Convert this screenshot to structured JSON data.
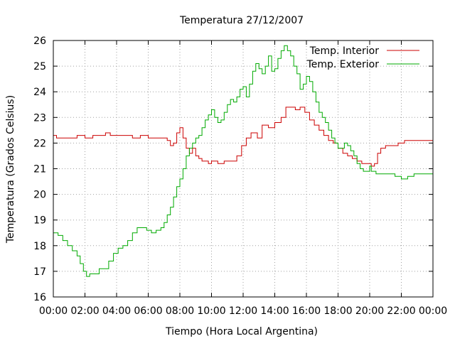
{
  "chart_data": {
    "type": "line",
    "title": "Temperatura 27/12/2007",
    "xlabel": "Tiempo (Hora Local Argentina)",
    "ylabel": "Temperatura (Grados Celsius)",
    "xlim": [
      0,
      24
    ],
    "ylim": [
      16,
      26
    ],
    "x_ticks": [
      {
        "value": 0,
        "label": "00:00"
      },
      {
        "value": 2,
        "label": "02:00"
      },
      {
        "value": 4,
        "label": "04:00"
      },
      {
        "value": 6,
        "label": "06:00"
      },
      {
        "value": 8,
        "label": "08:00"
      },
      {
        "value": 10,
        "label": "10:00"
      },
      {
        "value": 12,
        "label": "12:00"
      },
      {
        "value": 14,
        "label": "14:00"
      },
      {
        "value": 16,
        "label": "16:00"
      },
      {
        "value": 18,
        "label": "18:00"
      },
      {
        "value": 20,
        "label": "20:00"
      },
      {
        "value": 22,
        "label": "22:00"
      },
      {
        "value": 24,
        "label": "00:00"
      }
    ],
    "y_ticks": [
      {
        "value": 16,
        "label": "16"
      },
      {
        "value": 17,
        "label": "17"
      },
      {
        "value": 18,
        "label": "18"
      },
      {
        "value": 19,
        "label": "19"
      },
      {
        "value": 20,
        "label": "20"
      },
      {
        "value": 21,
        "label": "21"
      },
      {
        "value": 22,
        "label": "22"
      },
      {
        "value": 23,
        "label": "23"
      },
      {
        "value": 24,
        "label": "24"
      },
      {
        "value": 25,
        "label": "25"
      },
      {
        "value": 26,
        "label": "26"
      }
    ],
    "grid": true,
    "legend_position": "top-right",
    "series": [
      {
        "name": "Temp. Interior",
        "color": "#cc0000",
        "points": [
          [
            0,
            22.3
          ],
          [
            0.2,
            22.2
          ],
          [
            1,
            22.2
          ],
          [
            1.5,
            22.3
          ],
          [
            2,
            22.2
          ],
          [
            2.5,
            22.3
          ],
          [
            3,
            22.3
          ],
          [
            3.3,
            22.4
          ],
          [
            3.6,
            22.3
          ],
          [
            4,
            22.3
          ],
          [
            4.5,
            22.3
          ],
          [
            5,
            22.2
          ],
          [
            5.5,
            22.3
          ],
          [
            6,
            22.2
          ],
          [
            6.5,
            22.2
          ],
          [
            7,
            22.2
          ],
          [
            7.2,
            22.1
          ],
          [
            7.4,
            21.9
          ],
          [
            7.6,
            22.0
          ],
          [
            7.8,
            22.4
          ],
          [
            8.0,
            22.6
          ],
          [
            8.2,
            22.2
          ],
          [
            8.4,
            21.8
          ],
          [
            8.6,
            21.6
          ],
          [
            8.8,
            21.8
          ],
          [
            9.0,
            21.5
          ],
          [
            9.2,
            21.4
          ],
          [
            9.4,
            21.3
          ],
          [
            9.6,
            21.3
          ],
          [
            9.8,
            21.2
          ],
          [
            10.0,
            21.3
          ],
          [
            10.4,
            21.2
          ],
          [
            10.8,
            21.3
          ],
          [
            11.2,
            21.3
          ],
          [
            11.6,
            21.5
          ],
          [
            11.9,
            21.9
          ],
          [
            12.2,
            22.2
          ],
          [
            12.5,
            22.4
          ],
          [
            12.9,
            22.2
          ],
          [
            13.2,
            22.7
          ],
          [
            13.6,
            22.6
          ],
          [
            14.0,
            22.8
          ],
          [
            14.4,
            23.0
          ],
          [
            14.7,
            23.4
          ],
          [
            15.0,
            23.4
          ],
          [
            15.3,
            23.3
          ],
          [
            15.6,
            23.4
          ],
          [
            15.9,
            23.2
          ],
          [
            16.2,
            22.9
          ],
          [
            16.5,
            22.7
          ],
          [
            16.8,
            22.5
          ],
          [
            17.1,
            22.3
          ],
          [
            17.4,
            22.1
          ],
          [
            17.7,
            22.0
          ],
          [
            18.0,
            21.8
          ],
          [
            18.3,
            21.6
          ],
          [
            18.6,
            21.5
          ],
          [
            18.9,
            21.4
          ],
          [
            19.2,
            21.3
          ],
          [
            19.5,
            21.2
          ],
          [
            19.8,
            21.2
          ],
          [
            20.1,
            21.1
          ],
          [
            20.3,
            21.2
          ],
          [
            20.5,
            21.6
          ],
          [
            20.7,
            21.8
          ],
          [
            21.0,
            21.9
          ],
          [
            21.4,
            21.9
          ],
          [
            21.8,
            22.0
          ],
          [
            22.2,
            22.1
          ],
          [
            22.6,
            22.1
          ],
          [
            23.0,
            22.1
          ],
          [
            24.0,
            22.1
          ]
        ]
      },
      {
        "name": "Temp. Exterior",
        "color": "#00aa00",
        "points": [
          [
            0,
            18.5
          ],
          [
            0.3,
            18.4
          ],
          [
            0.6,
            18.2
          ],
          [
            0.9,
            18.0
          ],
          [
            1.2,
            17.8
          ],
          [
            1.5,
            17.6
          ],
          [
            1.7,
            17.3
          ],
          [
            1.9,
            17.0
          ],
          [
            2.1,
            16.8
          ],
          [
            2.3,
            16.9
          ],
          [
            2.6,
            16.9
          ],
          [
            2.9,
            17.1
          ],
          [
            3.2,
            17.1
          ],
          [
            3.5,
            17.4
          ],
          [
            3.8,
            17.7
          ],
          [
            4.1,
            17.9
          ],
          [
            4.4,
            18.0
          ],
          [
            4.7,
            18.2
          ],
          [
            5.0,
            18.5
          ],
          [
            5.3,
            18.7
          ],
          [
            5.6,
            18.7
          ],
          [
            5.9,
            18.6
          ],
          [
            6.2,
            18.5
          ],
          [
            6.5,
            18.6
          ],
          [
            6.8,
            18.7
          ],
          [
            7.0,
            18.9
          ],
          [
            7.2,
            19.2
          ],
          [
            7.4,
            19.5
          ],
          [
            7.6,
            19.9
          ],
          [
            7.8,
            20.3
          ],
          [
            8.0,
            20.6
          ],
          [
            8.2,
            21.0
          ],
          [
            8.4,
            21.5
          ],
          [
            8.6,
            21.8
          ],
          [
            8.8,
            22.0
          ],
          [
            9.0,
            22.2
          ],
          [
            9.2,
            22.3
          ],
          [
            9.4,
            22.6
          ],
          [
            9.6,
            22.9
          ],
          [
            9.8,
            23.1
          ],
          [
            10.0,
            23.3
          ],
          [
            10.2,
            23.0
          ],
          [
            10.4,
            22.8
          ],
          [
            10.6,
            22.9
          ],
          [
            10.8,
            23.2
          ],
          [
            11.0,
            23.5
          ],
          [
            11.2,
            23.7
          ],
          [
            11.4,
            23.6
          ],
          [
            11.6,
            23.8
          ],
          [
            11.8,
            24.1
          ],
          [
            12.0,
            24.2
          ],
          [
            12.2,
            23.8
          ],
          [
            12.4,
            24.3
          ],
          [
            12.6,
            24.8
          ],
          [
            12.8,
            25.1
          ],
          [
            13.0,
            24.9
          ],
          [
            13.2,
            24.7
          ],
          [
            13.4,
            25.0
          ],
          [
            13.6,
            25.4
          ],
          [
            13.8,
            24.8
          ],
          [
            14.0,
            24.9
          ],
          [
            14.2,
            25.3
          ],
          [
            14.4,
            25.6
          ],
          [
            14.6,
            25.8
          ],
          [
            14.8,
            25.6
          ],
          [
            15.0,
            25.4
          ],
          [
            15.2,
            25.0
          ],
          [
            15.4,
            24.7
          ],
          [
            15.6,
            24.1
          ],
          [
            15.8,
            24.3
          ],
          [
            16.0,
            24.6
          ],
          [
            16.2,
            24.4
          ],
          [
            16.4,
            24.0
          ],
          [
            16.6,
            23.6
          ],
          [
            16.8,
            23.2
          ],
          [
            17.0,
            23.0
          ],
          [
            17.2,
            22.8
          ],
          [
            17.4,
            22.5
          ],
          [
            17.6,
            22.2
          ],
          [
            17.8,
            22.0
          ],
          [
            18.0,
            21.8
          ],
          [
            18.2,
            21.8
          ],
          [
            18.4,
            22.0
          ],
          [
            18.6,
            21.9
          ],
          [
            18.8,
            21.7
          ],
          [
            19.0,
            21.5
          ],
          [
            19.2,
            21.2
          ],
          [
            19.4,
            21.0
          ],
          [
            19.6,
            20.9
          ],
          [
            19.8,
            20.9
          ],
          [
            20.0,
            21.1
          ],
          [
            20.1,
            20.9
          ],
          [
            20.4,
            20.8
          ],
          [
            20.8,
            20.8
          ],
          [
            21.2,
            20.8
          ],
          [
            21.6,
            20.7
          ],
          [
            22.0,
            20.6
          ],
          [
            22.4,
            20.7
          ],
          [
            22.8,
            20.8
          ],
          [
            23.2,
            20.8
          ],
          [
            23.6,
            20.8
          ],
          [
            24.0,
            20.9
          ]
        ]
      }
    ]
  }
}
